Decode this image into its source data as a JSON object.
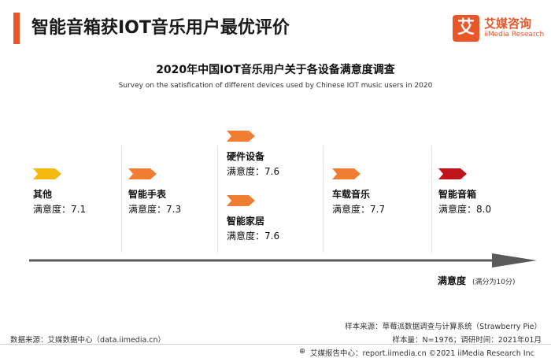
{
  "header": {
    "title": "智能音箱获IOT音乐用户最优评价",
    "logo_glyph": "艾",
    "logo_name": "艾媒咨询",
    "logo_sub": "iiMedia Research"
  },
  "chart_data": {
    "type": "ranking",
    "title": "2020年中国IOT音乐用户关于各设备满意度调查",
    "subtitle": "Survey on the satisfication of different devices used by Chinese IOT music users in 2020",
    "score_label": "满意度：",
    "xlabel": "满意度",
    "xlabel_note": "(满分为10分)",
    "items": [
      {
        "name": "其他",
        "value": 7.1,
        "color": "#f5b80f"
      },
      {
        "name": "智能手表",
        "value": 7.3,
        "color": "#ef7d32"
      },
      {
        "name": "硬件设备",
        "value": 7.6,
        "color": "#ef7d32"
      },
      {
        "name": "智能家居",
        "value": 7.6,
        "color": "#ef7d32"
      },
      {
        "name": "车载音乐",
        "value": 7.7,
        "color": "#ef7d32"
      },
      {
        "name": "智能音箱",
        "value": 8.0,
        "color": "#c0141c"
      }
    ]
  },
  "footer": {
    "source_left": "数据来源：艾媒数据中心（data.iimedia.cn）",
    "sample_source": "样本来源：草莓派数据调查与计算系统（Strawberry Pie）",
    "sample_size": "样本量：N=1976；调研时间：2021年01月",
    "copyright": "艾媒报告中心：report.iimedia.cn  ©2021  iiMedia Research Inc"
  },
  "colors": {
    "accent": "#e8562a",
    "axis": "#5a5a5a"
  }
}
